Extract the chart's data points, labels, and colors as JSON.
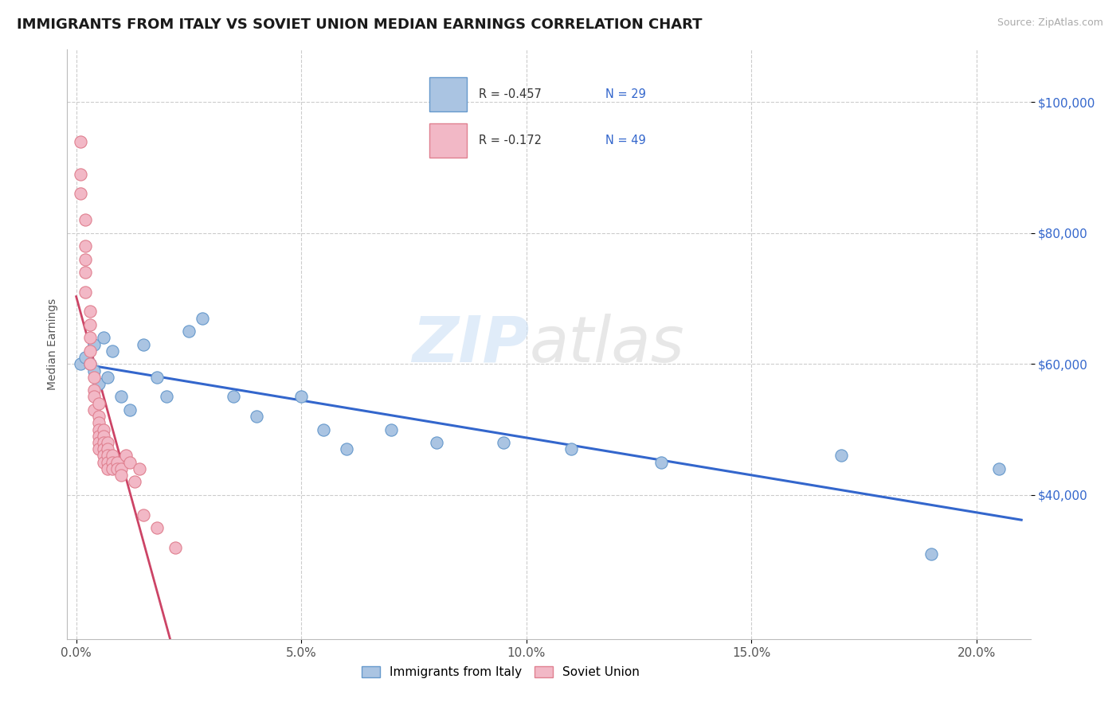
{
  "title": "IMMIGRANTS FROM ITALY VS SOVIET UNION MEDIAN EARNINGS CORRELATION CHART",
  "source": "Source: ZipAtlas.com",
  "ylabel": "Median Earnings",
  "xlim": [
    -0.002,
    0.212
  ],
  "ylim": [
    18000,
    108000
  ],
  "ytick_labels": [
    "$40,000",
    "$60,000",
    "$80,000",
    "$100,000"
  ],
  "ytick_values": [
    40000,
    60000,
    80000,
    100000
  ],
  "xtick_labels": [
    "0.0%",
    "5.0%",
    "10.0%",
    "15.0%",
    "20.0%"
  ],
  "xtick_values": [
    0.0,
    0.05,
    0.1,
    0.15,
    0.2
  ],
  "legend_labels": [
    "Immigrants from Italy",
    "Soviet Union"
  ],
  "italy_color": "#aac4e2",
  "soviet_color": "#f2b8c6",
  "italy_edge_color": "#6699cc",
  "soviet_edge_color": "#e08090",
  "italy_line_color": "#3366cc",
  "soviet_line_color": "#cc4466",
  "R_italy": -0.457,
  "N_italy": 29,
  "R_soviet": -0.172,
  "N_soviet": 49,
  "background_color": "#ffffff",
  "grid_color": "#cccccc",
  "italy_scatter_x": [
    0.001,
    0.002,
    0.003,
    0.004,
    0.004,
    0.005,
    0.006,
    0.007,
    0.008,
    0.01,
    0.012,
    0.015,
    0.018,
    0.02,
    0.025,
    0.028,
    0.035,
    0.04,
    0.05,
    0.055,
    0.06,
    0.07,
    0.08,
    0.095,
    0.11,
    0.13,
    0.17,
    0.19,
    0.205
  ],
  "italy_scatter_y": [
    60000,
    61000,
    60000,
    63000,
    59000,
    57000,
    64000,
    58000,
    62000,
    55000,
    53000,
    63000,
    58000,
    55000,
    65000,
    67000,
    55000,
    52000,
    55000,
    50000,
    47000,
    50000,
    48000,
    48000,
    47000,
    45000,
    46000,
    31000,
    44000
  ],
  "soviet_scatter_x": [
    0.001,
    0.001,
    0.001,
    0.002,
    0.002,
    0.002,
    0.002,
    0.002,
    0.003,
    0.003,
    0.003,
    0.003,
    0.003,
    0.004,
    0.004,
    0.004,
    0.004,
    0.005,
    0.005,
    0.005,
    0.005,
    0.005,
    0.005,
    0.005,
    0.006,
    0.006,
    0.006,
    0.006,
    0.006,
    0.006,
    0.007,
    0.007,
    0.007,
    0.007,
    0.007,
    0.008,
    0.008,
    0.008,
    0.009,
    0.009,
    0.01,
    0.01,
    0.011,
    0.012,
    0.013,
    0.014,
    0.015,
    0.018,
    0.022
  ],
  "soviet_scatter_y": [
    94000,
    89000,
    86000,
    82000,
    78000,
    76000,
    74000,
    71000,
    68000,
    66000,
    64000,
    62000,
    60000,
    58000,
    56000,
    55000,
    53000,
    54000,
    52000,
    51000,
    50000,
    49000,
    48000,
    47000,
    50000,
    49000,
    48000,
    47000,
    46000,
    45000,
    48000,
    47000,
    46000,
    45000,
    44000,
    46000,
    45000,
    44000,
    45000,
    44000,
    44000,
    43000,
    46000,
    45000,
    42000,
    44000,
    37000,
    35000,
    32000
  ],
  "title_fontsize": 13,
  "axis_label_fontsize": 10,
  "tick_fontsize": 11
}
